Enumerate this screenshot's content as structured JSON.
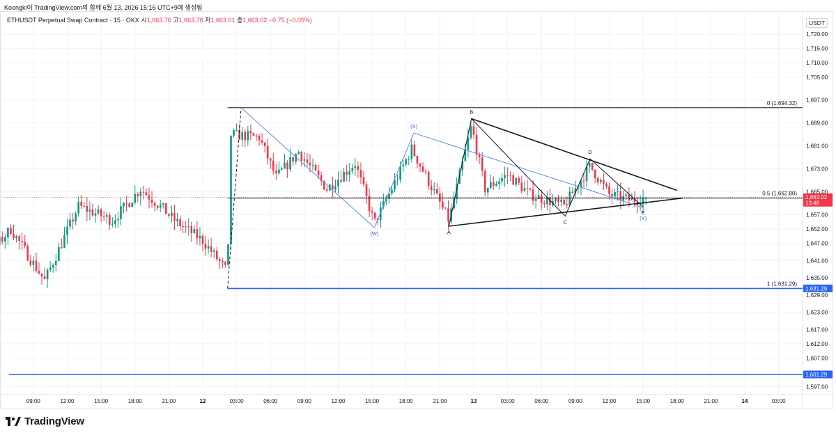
{
  "header": {
    "attribution": "Koongki이 TradingView.com의 함께 6월 13, 2026 15:16 UTC+9에 생성됨"
  },
  "symbol_bar": {
    "title": "ETHUSDT Perpetual Swap Contract · 15 · OKX",
    "open_label": "시",
    "open": "1,663.76",
    "high_label": "고",
    "high": "1,663.76",
    "low_label": "저",
    "low": "1,663.01",
    "close_label": "종",
    "close": "1,663.02",
    "change": "−0.75 (−0.05%)"
  },
  "price_axis": {
    "currency": "USDT"
  },
  "footer": {
    "brand": "TradingView"
  },
  "colors": {
    "up": "#089981",
    "down": "#f23645",
    "fib_blue": "#2962ff",
    "wave_blue": "#5b8def",
    "grid": "#f0f3fa"
  },
  "chart_data": {
    "type": "candlestick",
    "symbol": "ETHUSDT Perpetual Swap Contract · 15 · OKX",
    "y_ticks": [
      1597,
      1601.29,
      1607,
      1612,
      1617,
      1623,
      1629,
      1635,
      1641,
      1647,
      1652,
      1657,
      1665,
      1673,
      1681,
      1689,
      1697,
      1705,
      1710,
      1715,
      1720
    ],
    "y_tick_labels": [
      "1,597.00",
      "1,601.29",
      "1,607.00",
      "1,612.00",
      "1,617.00",
      "1,623.00",
      "1,629.00",
      "1,635.00",
      "1,641.00",
      "1,647.00",
      "1,652.00",
      "1,657.00",
      "1,665.00",
      "1,673.00",
      "1,681.00",
      "1,689.00",
      "1,697.00",
      "1,705.00",
      "1,710.00",
      "1,715.00",
      "1,720.00"
    ],
    "x_ticks": [
      "09:00",
      "12:00",
      "15:00",
      "18:00",
      "21:00",
      "12",
      "03:00",
      "06:00",
      "09:00",
      "12:00",
      "15:00",
      "18:00",
      "21:00",
      "13",
      "03:00",
      "06:00",
      "09:00",
      "12:00",
      "15:00",
      "18:00",
      "21:00",
      "14",
      "03:00"
    ],
    "x_tick_hours": [
      -15,
      -12,
      -9,
      -6,
      -3,
      0,
      3,
      6,
      9,
      12,
      15,
      18,
      21,
      24,
      27,
      30,
      33,
      36,
      39,
      42,
      45,
      48,
      51
    ],
    "x_bold": [
      "12",
      "13",
      "14"
    ],
    "price_labels": [
      {
        "price": 1663.02,
        "text": "1,663.02",
        "sub": "13:48",
        "color": "#f23645"
      },
      {
        "price": 1631.29,
        "text": "1,631.29",
        "color": "#2962ff"
      },
      {
        "price": 1601.29,
        "text": "1,601.29",
        "color": "#2962ff"
      }
    ],
    "fib_levels": [
      {
        "label": "0 (1,694.32)",
        "price": 1694.32
      },
      {
        "label": "0.5 (1,662.80)",
        "price": 1662.8
      },
      {
        "label": "1 (1,631.29)",
        "price": 1631.29
      }
    ],
    "horizontal_lines": [
      1601.29
    ],
    "anchor_path": [
      {
        "t": -24,
        "p": 1621
      },
      {
        "t": -17,
        "p": 1652
      },
      {
        "t": -14,
        "p": 1634
      },
      {
        "t": -11,
        "p": 1660
      },
      {
        "t": -8,
        "p": 1655
      },
      {
        "t": -5.5,
        "p": 1666
      },
      {
        "t": -3.5,
        "p": 1659
      },
      {
        "t": -2.5,
        "p": 1655
      },
      {
        "t": 0,
        "p": 1648
      },
      {
        "t": 2.2,
        "p": 1637
      },
      {
        "t": 2.5,
        "p": 1685
      },
      {
        "t": 5,
        "p": 1684
      },
      {
        "t": 6.5,
        "p": 1670
      },
      {
        "t": 8.5,
        "p": 1679
      },
      {
        "t": 11,
        "p": 1666
      },
      {
        "t": 13.5,
        "p": 1675
      },
      {
        "t": 15.2,
        "p": 1654
      },
      {
        "t": 18.5,
        "p": 1680
      },
      {
        "t": 21.8,
        "p": 1655
      },
      {
        "t": 23.8,
        "p": 1688
      },
      {
        "t": 25,
        "p": 1666
      },
      {
        "t": 27,
        "p": 1671
      },
      {
        "t": 29,
        "p": 1664
      },
      {
        "t": 32,
        "p": 1660
      },
      {
        "t": 34.3,
        "p": 1674
      },
      {
        "t": 36,
        "p": 1664
      },
      {
        "t": 38,
        "p": 1662
      },
      {
        "t": 39.3,
        "p": 1663
      }
    ],
    "waves": [
      {
        "name": "blue-waves",
        "color": "#5b8def",
        "points": [
          {
            "t": 3.4,
            "p": 1694.32
          },
          {
            "t": 15.2,
            "p": 1652.5
          },
          {
            "t": 18.7,
            "p": 1685.5
          },
          {
            "t": 39,
            "p": 1659.5
          }
        ]
      },
      {
        "name": "abcde",
        "color": "#131722",
        "points": [
          {
            "t": 21.8,
            "p": 1653
          },
          {
            "t": 23.8,
            "p": 1690.5
          },
          {
            "t": 32.1,
            "p": 1656.5
          },
          {
            "t": 34.3,
            "p": 1676.5
          },
          {
            "t": 39,
            "p": 1659.8
          }
        ]
      }
    ],
    "triangle": [
      {
        "from": {
          "t": 23.8,
          "p": 1690.5
        },
        "to": {
          "t": 42,
          "p": 1665.5
        }
      },
      {
        "from": {
          "t": 21.8,
          "p": 1653
        },
        "to": {
          "t": 42.5,
          "p": 1662.8
        }
      }
    ],
    "impulse_dashed": {
      "from": {
        "t": 2.2,
        "p": 1631.29
      },
      "to": {
        "t": 3.4,
        "p": 1694.32
      }
    },
    "wave_labels": [
      {
        "text": "(W)",
        "t": 15.2,
        "p": 1652.5,
        "pos": "below",
        "color": "#2962ff"
      },
      {
        "text": "(X)",
        "t": 18.7,
        "p": 1685.5,
        "pos": "above",
        "color": "#2962ff"
      },
      {
        "text": "(Y)",
        "t": 39,
        "p": 1659.5,
        "pos": "below2",
        "color": "#2962ff"
      },
      {
        "text": "A",
        "t": 21.8,
        "p": 1653,
        "pos": "below",
        "color": "#131722"
      },
      {
        "text": "B",
        "t": 23.8,
        "p": 1690.5,
        "pos": "above",
        "color": "#131722"
      },
      {
        "text": "C",
        "t": 32.1,
        "p": 1656.5,
        "pos": "below",
        "color": "#131722"
      },
      {
        "text": "D",
        "t": 34.3,
        "p": 1676.5,
        "pos": "above",
        "color": "#131722"
      },
      {
        "text": "E",
        "t": 39,
        "p": 1659.8,
        "pos": "below",
        "color": "#131722"
      }
    ]
  }
}
